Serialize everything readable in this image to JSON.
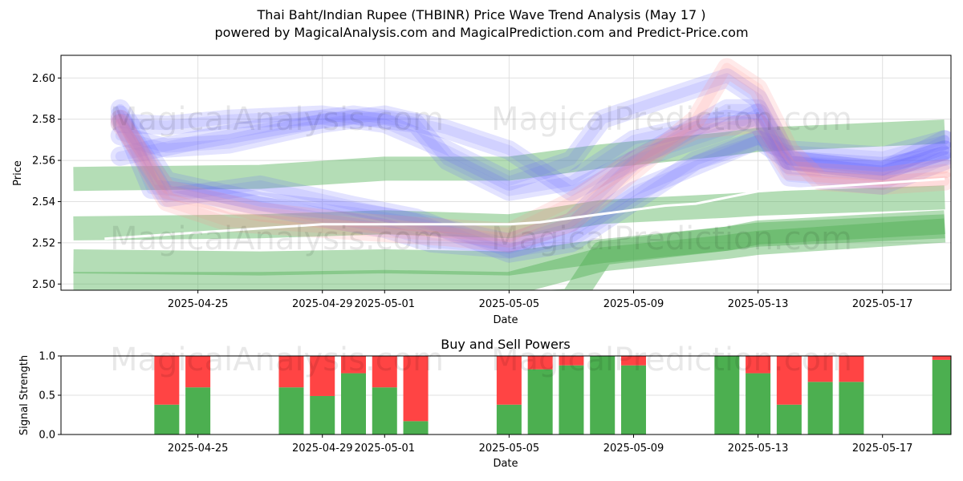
{
  "title": "Thai Baht/Indian Rupee (THBINR) Price Wave Trend Analysis (May 17 )",
  "subtitle": "powered by MagicalAnalysis.com and MagicalPrediction.com and Predict-Price.com",
  "watermarks": [
    "MagicalAnalysis.com",
    "MagicalPrediction.com"
  ],
  "colors": {
    "buy": "#4caf50",
    "sell": "#ff4444",
    "wave_blue": "#6666ff",
    "wave_pink": "#ff8888",
    "wave_green": "#4caf50"
  },
  "chart_data": [
    {
      "type": "line",
      "name": "price-wave",
      "xlabel": "Date",
      "ylabel": "Price",
      "ylim": [
        2.497,
        2.611
      ],
      "yticks": [
        "2.50",
        "2.52",
        "2.54",
        "2.56",
        "2.58",
        "2.60"
      ],
      "xticks": [
        "2025-04-25",
        "2025-04-29",
        "2025-05-01",
        "2025-05-05",
        "2025-05-09",
        "2025-05-13",
        "2025-05-17"
      ],
      "xtick_days": [
        3,
        7,
        9,
        13,
        17,
        21,
        25
      ],
      "xlim_days": [
        -1.4,
        27.2
      ],
      "price_line": {
        "x_days": [
          0,
          1,
          2,
          3,
          4,
          5,
          6,
          7,
          8,
          9,
          10,
          11,
          12,
          13,
          14,
          15,
          16,
          17,
          18,
          19,
          20,
          21,
          22,
          23,
          24,
          25,
          26,
          27
        ],
        "values": [
          2.522,
          2.523,
          2.524,
          2.525,
          2.526,
          2.527,
          2.528,
          2.529,
          2.529,
          2.529,
          2.529,
          2.529,
          2.529,
          2.529,
          2.53,
          2.532,
          2.534,
          2.536,
          2.538,
          2.539,
          2.542,
          2.545,
          2.546,
          2.547,
          2.548,
          2.549,
          2.55,
          2.551
        ]
      },
      "series": [
        {
          "name": "blue-wave-1",
          "color": "blue",
          "x_days": [
            0.5,
            1.5,
            3,
            6,
            9,
            10.5,
            13,
            15,
            17,
            21,
            22,
            25,
            27
          ],
          "values": [
            2.582,
            2.546,
            2.544,
            2.535,
            2.527,
            2.52,
            2.517,
            2.525,
            2.545,
            2.57,
            2.56,
            2.555,
            2.565
          ]
        },
        {
          "name": "blue-wave-2",
          "color": "blue",
          "x_days": [
            0.5,
            2,
            5,
            8,
            10,
            13,
            15,
            17,
            20,
            21,
            22,
            25,
            27
          ],
          "values": [
            2.585,
            2.55,
            2.54,
            2.535,
            2.53,
            2.52,
            2.53,
            2.56,
            2.585,
            2.585,
            2.558,
            2.555,
            2.57
          ]
        },
        {
          "name": "blue-wave-3",
          "color": "blue",
          "x_days": [
            0.5,
            2,
            4,
            7,
            9,
            11,
            13,
            15,
            16,
            17,
            20,
            21,
            22,
            25,
            27
          ],
          "values": [
            2.578,
            2.577,
            2.58,
            2.582,
            2.578,
            2.565,
            2.55,
            2.56,
            2.58,
            2.585,
            2.6,
            2.59,
            2.56,
            2.555,
            2.565
          ]
        },
        {
          "name": "blue-wave-4",
          "color": "blue",
          "x_days": [
            0.5,
            3,
            6,
            8,
            10,
            11,
            13,
            15,
            17,
            20,
            21,
            22,
            25,
            27
          ],
          "values": [
            2.562,
            2.57,
            2.578,
            2.582,
            2.578,
            2.56,
            2.545,
            2.55,
            2.57,
            2.58,
            2.578,
            2.552,
            2.548,
            2.56
          ]
        },
        {
          "name": "blue-wave-5",
          "color": "blue",
          "x_days": [
            0.5,
            2,
            4,
            7,
            9,
            11,
            13,
            15,
            17,
            20,
            21,
            22,
            25,
            27
          ],
          "values": [
            2.572,
            2.566,
            2.568,
            2.578,
            2.582,
            2.575,
            2.565,
            2.545,
            2.56,
            2.575,
            2.583,
            2.56,
            2.557,
            2.562
          ]
        },
        {
          "name": "blue-wave-6",
          "color": "blue",
          "x_days": [
            0.5,
            2,
            5,
            8,
            10,
            13,
            15,
            17,
            19,
            21,
            22,
            25,
            27
          ],
          "values": [
            2.58,
            2.542,
            2.548,
            2.538,
            2.532,
            2.515,
            2.52,
            2.54,
            2.56,
            2.57,
            2.565,
            2.562,
            2.57
          ]
        },
        {
          "name": "pink-wave-1",
          "color": "pink",
          "x_days": [
            0.5,
            2,
            4,
            7,
            9,
            11,
            13,
            15,
            17,
            19,
            20,
            21,
            22,
            23,
            25,
            27
          ],
          "values": [
            2.58,
            2.54,
            2.53,
            2.527,
            2.525,
            2.523,
            2.52,
            2.53,
            2.555,
            2.58,
            2.605,
            2.595,
            2.565,
            2.55,
            2.548,
            2.55
          ]
        },
        {
          "name": "pink-wave-2",
          "color": "pink",
          "x_days": [
            0.5,
            2,
            5,
            8,
            10,
            13,
            15,
            17,
            19,
            21,
            22,
            25,
            27
          ],
          "values": [
            2.578,
            2.546,
            2.535,
            2.53,
            2.528,
            2.525,
            2.54,
            2.56,
            2.575,
            2.578,
            2.555,
            2.552,
            2.556
          ]
        },
        {
          "name": "green-band-1",
          "color": "green",
          "x_days": [
            -1,
            5,
            9,
            13,
            16,
            20,
            21,
            27
          ],
          "values": [
            2.551,
            2.552,
            2.556,
            2.556,
            2.562,
            2.568,
            2.57,
            2.574
          ]
        },
        {
          "name": "green-band-2",
          "color": "green",
          "x_days": [
            -1,
            5,
            9,
            13,
            16,
            20,
            21,
            27
          ],
          "values": [
            2.527,
            2.528,
            2.53,
            2.528,
            2.535,
            2.538,
            2.539,
            2.542
          ]
        },
        {
          "name": "green-band-3",
          "color": "green",
          "x_days": [
            -1,
            5,
            9,
            13,
            16,
            20,
            21,
            27
          ],
          "values": [
            2.511,
            2.51,
            2.511,
            2.51,
            2.516,
            2.522,
            2.525,
            2.53
          ]
        },
        {
          "name": "green-band-4",
          "color": "green",
          "x_days": [
            -1,
            5,
            9,
            13,
            16,
            20,
            21,
            27
          ],
          "values": [
            2.5,
            2.5,
            2.501,
            2.5,
            2.512,
            2.518,
            2.52,
            2.526
          ]
        },
        {
          "name": "green-band-5",
          "color": "green",
          "x_days": [
            13,
            15,
            16,
            20,
            21,
            27
          ],
          "values": [
            2.49,
            2.492,
            2.515,
            2.522,
            2.524,
            2.528
          ]
        }
      ]
    },
    {
      "type": "bar",
      "name": "buy-sell-powers",
      "title": "Buy and Sell Powers",
      "xlabel": "Date",
      "ylabel": "Signal Strength",
      "ylim": [
        0,
        1
      ],
      "yticks": [
        "0.0",
        "0.5",
        "1.0"
      ],
      "xticks": [
        "2025-04-25",
        "2025-04-29",
        "2025-05-01",
        "2025-05-05",
        "2025-05-09",
        "2025-05-13",
        "2025-05-17"
      ],
      "xtick_days": [
        3,
        7,
        9,
        13,
        17,
        21,
        25
      ],
      "xlim_days": [
        -1.4,
        27.2
      ],
      "categories": [
        "2025-04-24",
        "2025-04-25",
        "2025-04-28",
        "2025-04-29",
        "2025-04-30",
        "2025-05-01",
        "2025-05-02",
        "2025-05-05",
        "2025-05-06",
        "2025-05-07",
        "2025-05-08",
        "2025-05-09",
        "2025-05-12",
        "2025-05-13",
        "2025-05-14",
        "2025-05-15",
        "2025-05-16",
        "2025-05-19"
      ],
      "x_days": [
        2,
        3,
        6,
        7,
        8,
        9,
        10,
        13,
        14,
        15,
        16,
        17,
        20,
        21,
        22,
        23,
        24,
        27
      ],
      "series": [
        {
          "name": "Buy",
          "values": [
            0.38,
            0.6,
            0.6,
            0.49,
            0.78,
            0.6,
            0.17,
            0.38,
            0.83,
            0.88,
            1.0,
            0.88,
            1.0,
            0.78,
            0.38,
            0.67,
            0.67,
            0.95
          ]
        },
        {
          "name": "Sell",
          "values": [
            0.62,
            0.4,
            0.4,
            0.51,
            0.22,
            0.4,
            0.83,
            0.62,
            0.17,
            0.12,
            0.0,
            0.12,
            0.0,
            0.22,
            0.62,
            0.33,
            0.33,
            0.05
          ]
        }
      ]
    }
  ]
}
